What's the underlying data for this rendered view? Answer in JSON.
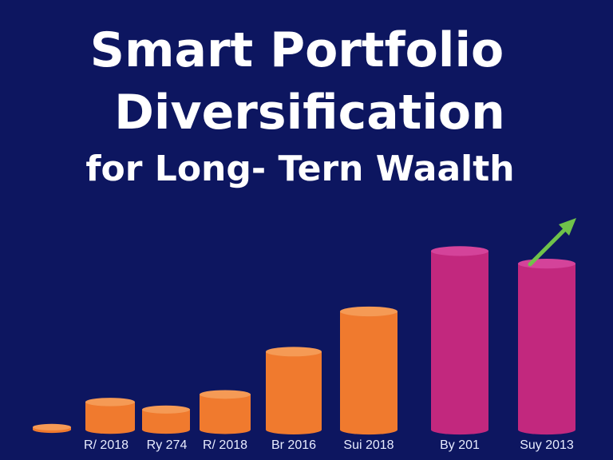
{
  "header": {
    "title_line1": "Smart Portfolio",
    "title_line2": "Diversification",
    "title_line3": "for Long- Tern Waalth"
  },
  "colors": {
    "background": "#0d1660",
    "bar_orange": "#f07a2e",
    "bar_orange_top": "#f59a55",
    "bar_magenta": "#c2287e",
    "bar_magenta_top": "#d4439a",
    "arrow": "#6fc24a",
    "text": "#ffffff"
  },
  "chart_data": {
    "type": "bar",
    "categories": [
      "",
      "R/ 2018",
      "Ry 274",
      "R/ 2018",
      "Br 2016",
      "Sui 2018",
      "By 201",
      "Suy 2013"
    ],
    "values": [
      1,
      11,
      8,
      14,
      31,
      47,
      71,
      66
    ],
    "highlight": [
      false,
      false,
      false,
      false,
      false,
      false,
      true,
      true
    ],
    "ylim": [
      0,
      100
    ],
    "grid": false,
    "legend": "none",
    "annotation": "trend-up-arrow"
  }
}
